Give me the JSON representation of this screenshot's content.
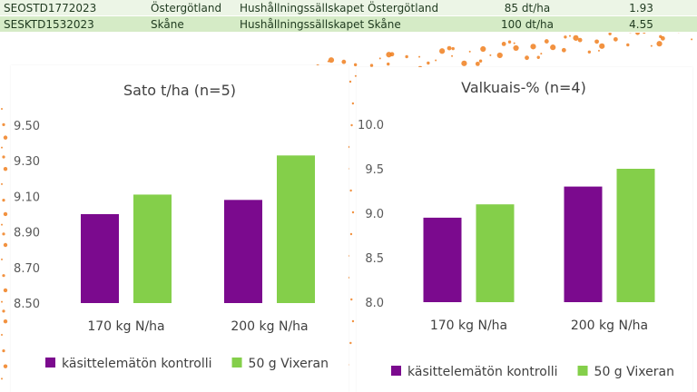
{
  "table": {
    "rows": [
      {
        "id": "SEOSTD1772023",
        "region": "Östergötland",
        "org": "Hushållningssällskapet Östergötland",
        "rate": "85 dt/ha",
        "value": "1.93"
      },
      {
        "id": "SESKTD1532023",
        "region": "Skåne",
        "org": "Hushållningssällskapet Skåne",
        "rate": "100 dt/ha",
        "value": "4.55"
      }
    ]
  },
  "colors": {
    "series1": "#7b0a8e",
    "series2": "#84cf4a",
    "accent_dots": "#f07f1f"
  },
  "chart_data": [
    {
      "type": "bar",
      "title": "Sato t/ha (n=5)",
      "categories": [
        "170 kg N/ha",
        "200 kg N/ha"
      ],
      "series": [
        {
          "name": "käsittelemätön kontrolli",
          "values": [
            9.0,
            9.08
          ]
        },
        {
          "name": "50 g Vixeran",
          "values": [
            9.11,
            9.33
          ]
        }
      ],
      "ylim": [
        8.5,
        9.5
      ],
      "yticks": [
        "8.50",
        "8.70",
        "8.90",
        "9.10",
        "9.30",
        "9.50"
      ],
      "grid": false,
      "legend": "bottom"
    },
    {
      "type": "bar",
      "title": "Valkuais-% (n=4)",
      "categories": [
        "170 kg N/ha",
        "200 kg N/ha"
      ],
      "series": [
        {
          "name": "käsittelemätön kontrolli",
          "values": [
            8.95,
            9.3
          ]
        },
        {
          "name": "50 g Vixeran",
          "values": [
            9.1,
            9.5
          ]
        }
      ],
      "ylim": [
        8.0,
        10.0
      ],
      "yticks": [
        "8.0",
        "8.5",
        "9.0",
        "9.5",
        "10.0"
      ],
      "grid": false,
      "legend": "bottom"
    }
  ]
}
